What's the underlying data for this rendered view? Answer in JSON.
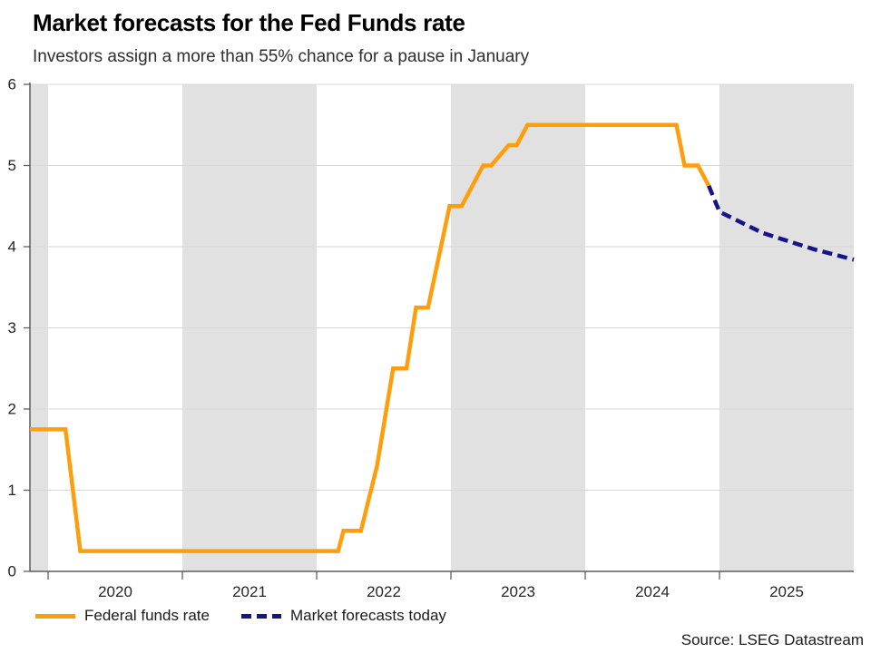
{
  "header": {
    "title": "Market forecasts for the Fed Funds rate",
    "subtitle": "Investors assign a more than 55% chance for a pause in January"
  },
  "legend": {
    "items": [
      {
        "label": "Federal funds rate",
        "color": "#FF9E0D",
        "style": "solid"
      },
      {
        "label": "Market forecasts today",
        "color": "#151589",
        "style": "dashed"
      }
    ]
  },
  "source": "Source: LSEG Datastream",
  "chart_data": {
    "type": "line",
    "title": "Market forecasts for the Fed Funds rate",
    "subtitle": "Investors assign a more than 55% chance for a pause in January",
    "xlabel": "",
    "ylabel": "",
    "x_range": [
      2019.865,
      2026.0
    ],
    "y_range": [
      0,
      6
    ],
    "y_ticks": [
      0,
      1,
      2,
      3,
      4,
      5,
      6
    ],
    "x_tick_years": [
      2020,
      2021,
      2022,
      2023,
      2024,
      2025
    ],
    "grid": "horizontal",
    "legend_position": "bottom-left",
    "band_color": "#e1e1e1",
    "grid_color": "#d9d9d9",
    "axis_color": "#5f5f5f",
    "shaded_year_spans": [
      [
        2019.865,
        2020.0
      ],
      [
        2021.0,
        2022.0
      ],
      [
        2023.0,
        2024.0
      ],
      [
        2025.0,
        2026.0
      ]
    ],
    "series": [
      {
        "name": "Federal funds rate",
        "color": "#FF9E0D",
        "dash": null,
        "points": [
          [
            2019.865,
            1.75
          ],
          [
            2020.13,
            1.75
          ],
          [
            2020.24,
            0.25
          ],
          [
            2022.16,
            0.25
          ],
          [
            2022.2,
            0.5
          ],
          [
            2022.33,
            0.5
          ],
          [
            2022.45,
            1.3
          ],
          [
            2022.57,
            2.5
          ],
          [
            2022.67,
            2.5
          ],
          [
            2022.74,
            3.25
          ],
          [
            2022.83,
            3.25
          ],
          [
            2022.99,
            4.5
          ],
          [
            2023.08,
            4.5
          ],
          [
            2023.24,
            5.0
          ],
          [
            2023.3,
            5.0
          ],
          [
            2023.43,
            5.25
          ],
          [
            2023.49,
            5.25
          ],
          [
            2023.57,
            5.5
          ],
          [
            2024.68,
            5.5
          ],
          [
            2024.74,
            5.0
          ],
          [
            2024.84,
            5.0
          ],
          [
            2024.92,
            4.75
          ]
        ]
      },
      {
        "name": "Market forecasts today",
        "color": "#151589",
        "dash": [
          11,
          6
        ],
        "points": [
          [
            2024.92,
            4.75
          ],
          [
            2025.0,
            4.43
          ],
          [
            2025.32,
            4.17
          ],
          [
            2025.7,
            3.97
          ],
          [
            2026.0,
            3.84
          ]
        ]
      }
    ]
  }
}
